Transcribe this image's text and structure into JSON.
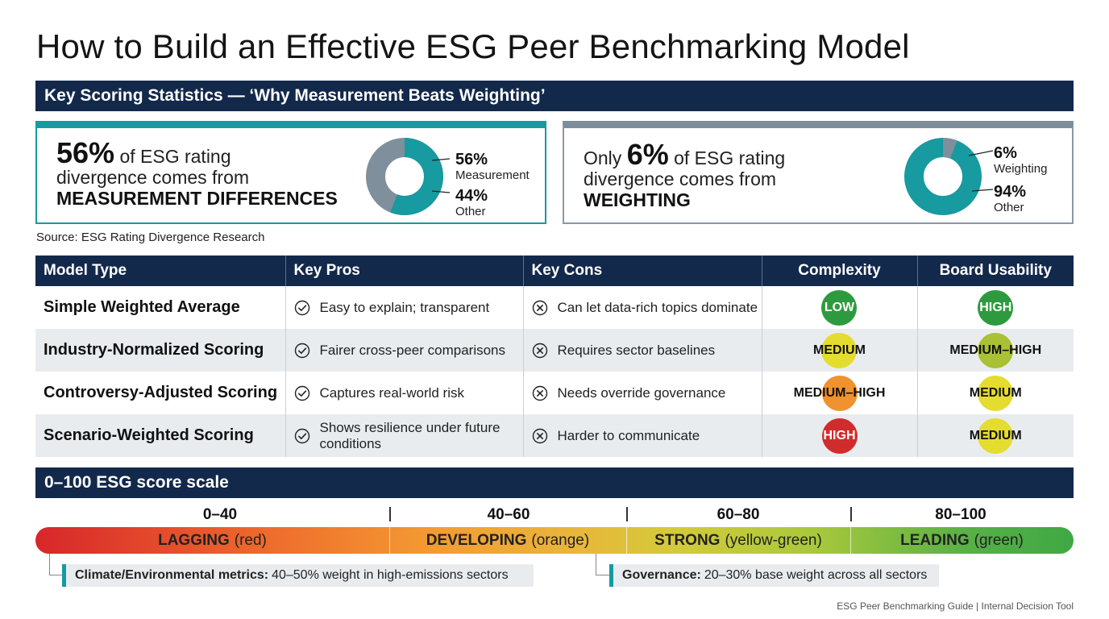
{
  "title": "How to Build an Effective ESG Peer Benchmarking Model",
  "stats_band": "Key Scoring Statistics — ‘Why Measurement Beats Weighting’",
  "stat_left": {
    "big": "56%",
    "line1_rest": " of ESG rating",
    "line2": "divergence comes from",
    "line3": "MEASUREMENT DIFFERENCES",
    "donut": {
      "primary_pct": 56,
      "primary_color": "#179aa0",
      "other_color": "#7f8f9b"
    },
    "legend": [
      {
        "pct": "56%",
        "label": "Measurement"
      },
      {
        "pct": "44%",
        "label": "Other"
      }
    ]
  },
  "stat_right": {
    "prefix": "Only ",
    "big": "6%",
    "line1_rest": " of ESG rating",
    "line2": "divergence comes from",
    "line3": "WEIGHTING",
    "donut": {
      "primary_pct": 6,
      "primary_color": "#7f8f9b",
      "other_color": "#179aa0"
    },
    "legend": [
      {
        "pct": "6%",
        "label": "Weighting"
      },
      {
        "pct": "94%",
        "label": "Other"
      }
    ]
  },
  "source": "Source: ESG Rating Divergence Research",
  "table": {
    "headers": [
      "Model Type",
      "Key Pros",
      "Key Cons",
      "Complexity",
      "Board Usability"
    ],
    "rows": [
      {
        "model": "Simple Weighted Average",
        "pro": "Easy to explain; transparent",
        "con": "Can let data-rich topics dominate",
        "complexity": {
          "label": "LOW",
          "color": "#2e9a3f",
          "light": true
        },
        "usability": {
          "label": "HIGH",
          "color": "#2e9a3f",
          "light": true
        }
      },
      {
        "model": "Industry-Normalized Scoring",
        "pro": "Fairer cross-peer comparisons",
        "con": "Requires sector baselines",
        "complexity": {
          "label": "MEDIUM",
          "color": "#e4dc2e",
          "light": false
        },
        "usability": {
          "label": "MEDIUM–HIGH",
          "color": "#a9c132",
          "light": false
        }
      },
      {
        "model": "Controversy-Adjusted Scoring",
        "pro": "Captures real-world risk",
        "con": "Needs override governance",
        "complexity": {
          "label": "MEDIUM–HIGH",
          "color": "#f0922e",
          "light": false
        },
        "usability": {
          "label": "MEDIUM",
          "color": "#e4dc2e",
          "light": false
        }
      },
      {
        "model": "Scenario-Weighted Scoring",
        "pro": "Shows resilience under future conditions",
        "con": "Harder to communicate",
        "complexity": {
          "label": "HIGH",
          "color": "#d12c2c",
          "light": true
        },
        "usability": {
          "label": "MEDIUM",
          "color": "#e4dc2e",
          "light": false
        }
      }
    ]
  },
  "scale_band": "0–100 ESG score scale",
  "scale": [
    {
      "range": "0–40",
      "name": "LAGGING",
      "color_word": "(red)"
    },
    {
      "range": "40–60",
      "name": "DEVELOPING",
      "color_word": "(orange)"
    },
    {
      "range": "60–80",
      "name": "STRONG",
      "color_word": "(yellow-green)"
    },
    {
      "range": "80–100",
      "name": "LEADING",
      "color_word": "(green)"
    }
  ],
  "notes": [
    {
      "bold": "Climate/Environmental metrics:",
      "text": "40–50% weight in high-emissions sectors"
    },
    {
      "bold": "Governance:",
      "text": "20–30% base weight across all sectors"
    }
  ],
  "footer": "ESG Peer Benchmarking Guide  | Internal Decision Tool"
}
